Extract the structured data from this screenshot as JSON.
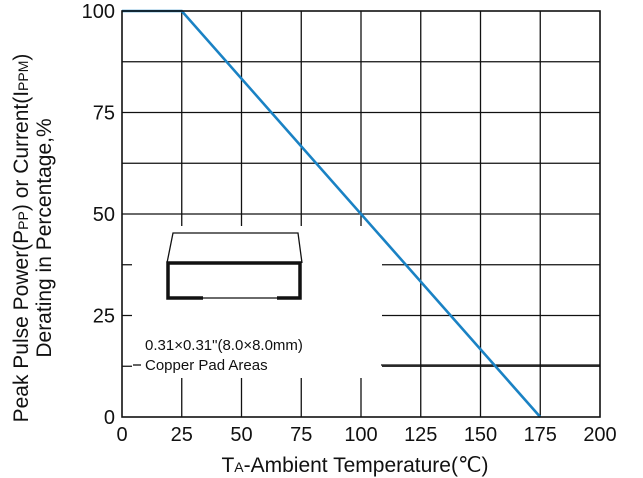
{
  "chart_data": {
    "type": "line",
    "title": "",
    "xlabel": {
      "prefix": "T",
      "subscript": "A",
      "text": "-Ambient Temperature(℃)"
    },
    "ylabel": {
      "line1_parts": [
        "Peak Pulse Power(P",
        "PP",
        ") or Current(I",
        "PPM",
        ")"
      ],
      "line2": "Derating in Percentage,%"
    },
    "xlim": [
      0,
      200
    ],
    "ylim": [
      0,
      100
    ],
    "xticks": [
      "0",
      "25",
      "50",
      "75",
      "100",
      "125",
      "150",
      "175",
      "200"
    ],
    "yticks": [
      "0",
      "25",
      "50",
      "75",
      "100"
    ],
    "grid": true,
    "series": [
      {
        "color": "#1a82c4",
        "x": [
          0,
          25,
          175
        ],
        "y": [
          100,
          100,
          0
        ]
      }
    ],
    "annotation": {
      "line1": "0.31×0.31\"(8.0×8.0mm)",
      "line2": "Copper Pad Areas"
    }
  }
}
